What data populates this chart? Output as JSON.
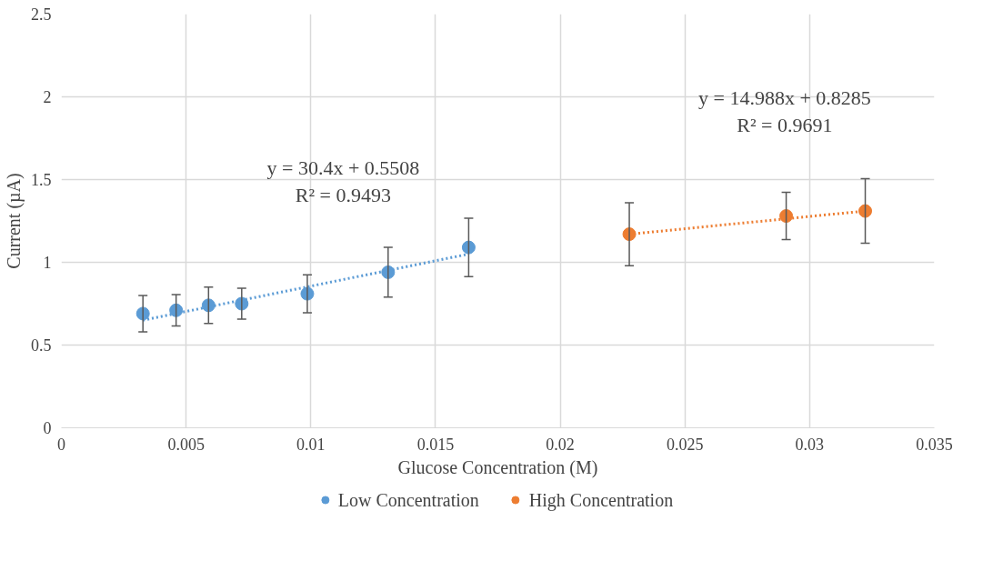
{
  "chart_data": {
    "type": "scatter",
    "xlabel": "Glucose Concentration (M)",
    "ylabel": "Current (µA)",
    "xlim": [
      0,
      0.035
    ],
    "xticks": [
      0,
      0.005,
      0.01,
      0.015,
      0.02,
      0.025,
      0.03,
      0.035
    ],
    "ylim": [
      0,
      2.5
    ],
    "yticks": [
      0,
      0.5,
      1,
      1.5,
      2,
      2.5
    ],
    "grid": true,
    "legend": "bottom",
    "marker": "circle",
    "series": [
      {
        "name": "Low Concentration",
        "color": "#5b9bd5",
        "x": [
          0.00327,
          0.0046,
          0.0059,
          0.00723,
          0.00986,
          0.0131,
          0.01633
        ],
        "values": [
          0.69,
          0.71,
          0.74,
          0.75,
          0.81,
          0.94,
          1.09
        ],
        "errors": [
          0.11,
          0.095,
          0.11,
          0.093,
          0.115,
          0.15,
          0.177
        ]
      },
      {
        "name": "High Concentration",
        "color": "#ed7d31",
        "x": [
          0.02277,
          0.02906,
          0.03223
        ],
        "values": [
          1.17,
          1.28,
          1.31
        ],
        "errors": [
          0.19,
          0.143,
          0.195
        ]
      },
      {
        "type": "line",
        "marker": "none",
        "color": "#5b9bd5",
        "line_style": "dotted",
        "x": [
          0.00327,
          0.01633
        ],
        "values": [
          0.65,
          1.05
        ]
      },
      {
        "type": "line",
        "marker": "none",
        "color": "#ed7d31",
        "line_style": "dotted",
        "x": [
          0.02277,
          0.03223
        ],
        "values": [
          1.17,
          1.31
        ]
      }
    ],
    "annotations": [
      "y = 30.4x + 0.5508",
      "R² = 0.9493",
      "y = 14.988x + 0.8285",
      "R² = 0.9691"
    ]
  }
}
